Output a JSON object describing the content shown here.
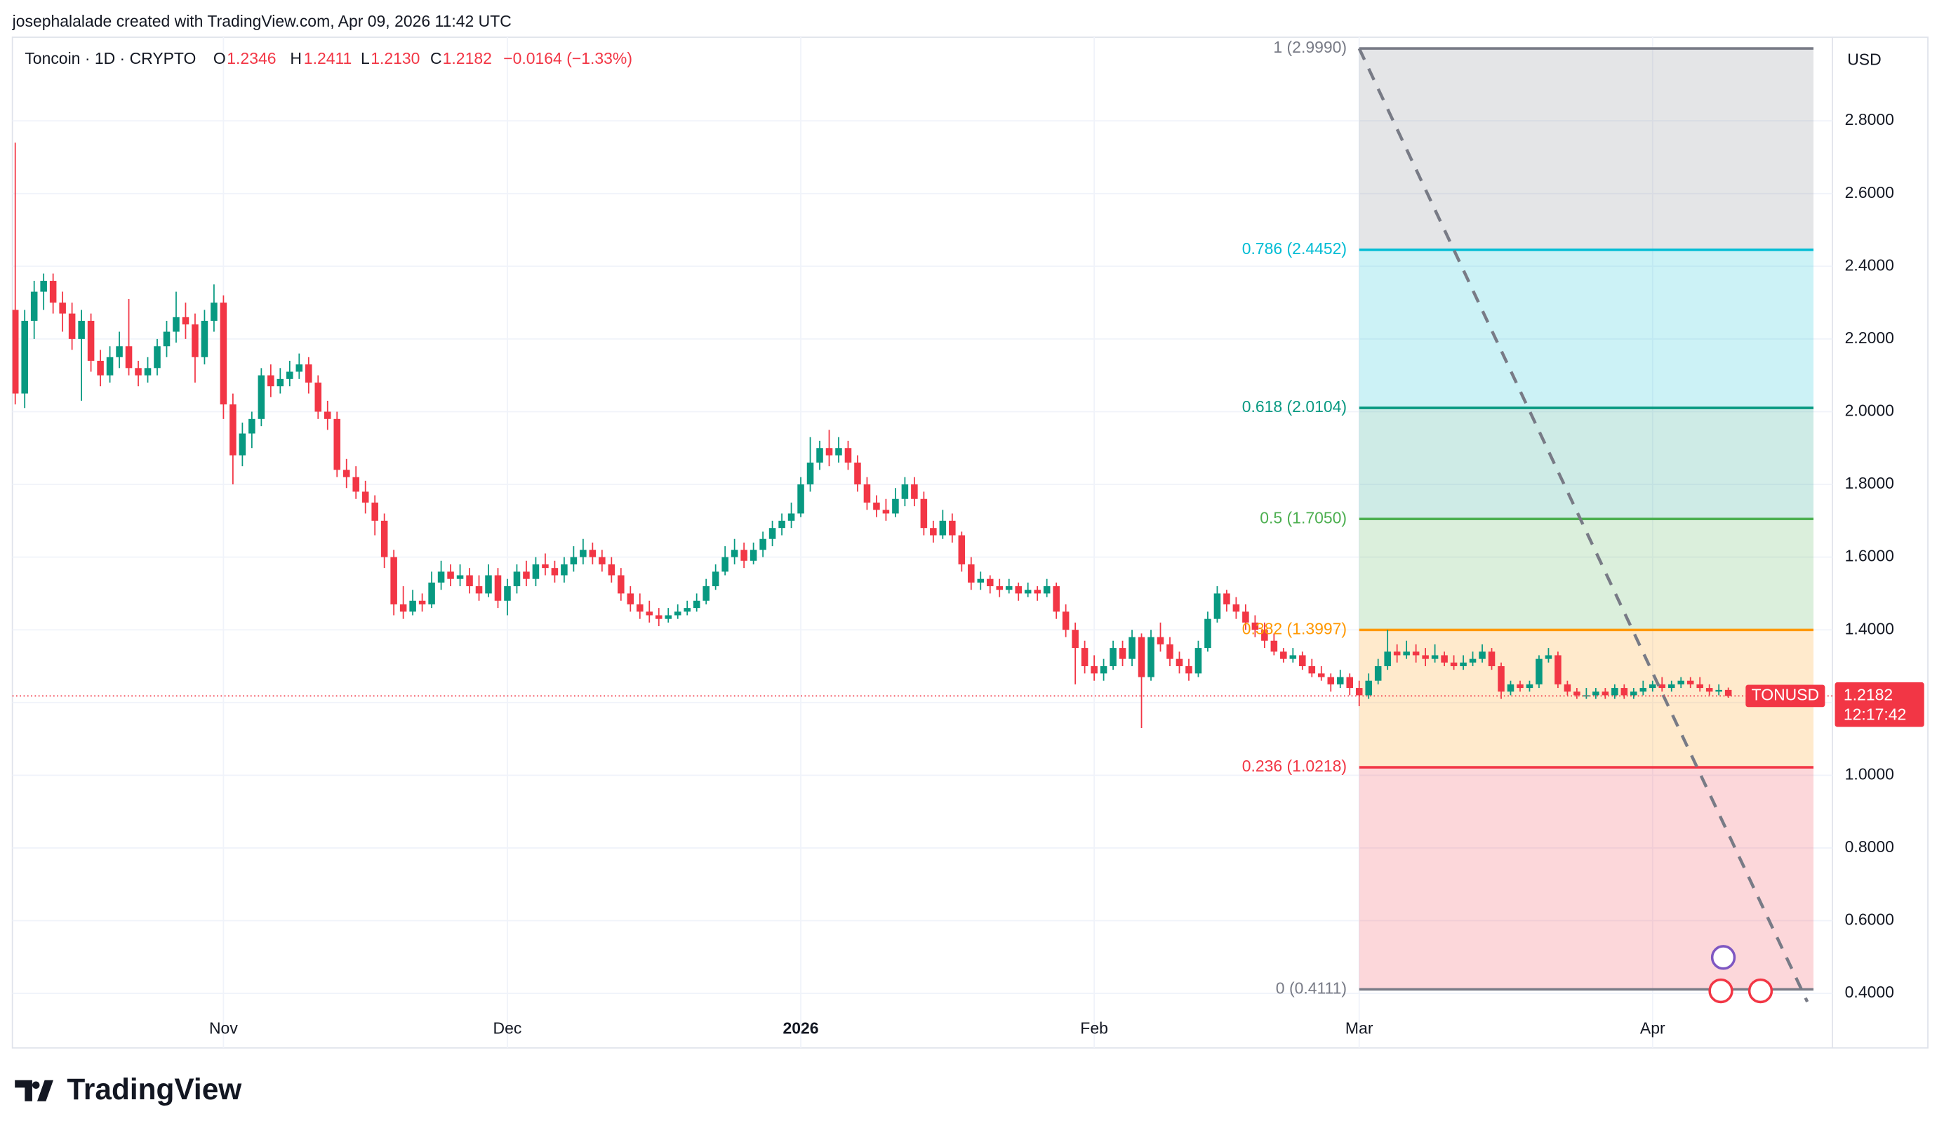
{
  "header": {
    "created": "josephalalade created with TradingView.com, Apr 09, 2026 11:42 UTC",
    "symbol": "Toncoin · 1D · CRYPTO",
    "ohlc_labels": [
      {
        "key": "O",
        "value": "1.2346"
      },
      {
        "key": "H",
        "value": "1.2411"
      },
      {
        "key": "L",
        "value": "1.2130"
      },
      {
        "key": "C",
        "value": "1.2182"
      }
    ],
    "change": "−0.0164 (−1.33%)",
    "currency": "USD",
    "ticker": "TONUSD",
    "price": "1.2182",
    "countdown": "12:17:42",
    "brand": "TradingView"
  },
  "chart_data": {
    "type": "candlestick",
    "up_color": "#089981",
    "down_color": "#f23645",
    "grid": true,
    "xlim": [
      -0.3,
      192
    ],
    "xticks": [
      {
        "value": 22,
        "label": "Nov"
      },
      {
        "value": 52,
        "label": "Dec"
      },
      {
        "value": 83,
        "label": "2026"
      },
      {
        "value": 114,
        "label": "Feb"
      },
      {
        "value": 142,
        "label": "Mar"
      },
      {
        "value": 173,
        "label": "Apr"
      }
    ],
    "ylim": [
      0.25,
      3.03
    ],
    "yticks": [
      {
        "value": 0.4,
        "label": "0.4000"
      },
      {
        "value": 0.6,
        "label": "0.6000"
      },
      {
        "value": 0.8,
        "label": "0.8000"
      },
      {
        "value": 1,
        "label": "1.0000"
      },
      {
        "value": 1.2,
        "label": "1.2000"
      },
      {
        "value": 1.4,
        "label": "1.4000"
      },
      {
        "value": 1.6,
        "label": "1.6000"
      },
      {
        "value": 1.8,
        "label": "1.8000"
      },
      {
        "value": 2,
        "label": "2.0000"
      },
      {
        "value": 2.2,
        "label": "2.2000"
      },
      {
        "value": 2.4,
        "label": "2.4000"
      },
      {
        "value": 2.6,
        "label": "2.6000"
      },
      {
        "value": 2.8,
        "label": "2.8000"
      }
    ],
    "fib": {
      "x_range": [
        142,
        190
      ],
      "levels": [
        {
          "label": "1 (2.9990)",
          "price": 2.999,
          "color": "#787b86"
        },
        {
          "label": "0.786 (2.4452)",
          "price": 2.4452,
          "color": "#00bcd4"
        },
        {
          "label": "0.618 (2.0104)",
          "price": 2.0104,
          "color": "#089981"
        },
        {
          "label": "0.5 (1.7050)",
          "price": 1.705,
          "color": "#4caf50"
        },
        {
          "label": "0.382 (1.3997)",
          "price": 1.3997,
          "color": "#ff9800"
        },
        {
          "label": "0.236 (1.0218)",
          "price": 1.0218,
          "color": "#f23645"
        },
        {
          "label": "0 (0.4111)",
          "price": 0.4111,
          "color": "#787b86"
        }
      ]
    },
    "ohlc": [
      [
        2.28,
        2.74,
        2.02,
        2.05
      ],
      [
        2.05,
        2.28,
        2.01,
        2.25
      ],
      [
        2.25,
        2.36,
        2.2,
        2.33
      ],
      [
        2.33,
        2.38,
        2.28,
        2.36
      ],
      [
        2.36,
        2.38,
        2.27,
        2.3
      ],
      [
        2.3,
        2.33,
        2.22,
        2.27
      ],
      [
        2.27,
        2.3,
        2.17,
        2.2
      ],
      [
        2.2,
        2.28,
        2.03,
        2.25
      ],
      [
        2.25,
        2.27,
        2.11,
        2.14
      ],
      [
        2.14,
        2.17,
        2.07,
        2.1
      ],
      [
        2.1,
        2.18,
        2.08,
        2.15
      ],
      [
        2.15,
        2.22,
        2.12,
        2.18
      ],
      [
        2.18,
        2.31,
        2.1,
        2.12
      ],
      [
        2.12,
        2.14,
        2.07,
        2.1
      ],
      [
        2.1,
        2.15,
        2.08,
        2.12
      ],
      [
        2.12,
        2.2,
        2.1,
        2.18
      ],
      [
        2.18,
        2.25,
        2.15,
        2.22
      ],
      [
        2.22,
        2.33,
        2.19,
        2.26
      ],
      [
        2.26,
        2.3,
        2.2,
        2.24
      ],
      [
        2.24,
        2.27,
        2.08,
        2.15
      ],
      [
        2.15,
        2.28,
        2.13,
        2.25
      ],
      [
        2.25,
        2.35,
        2.22,
        2.3
      ],
      [
        2.3,
        2.32,
        1.98,
        2.02
      ],
      [
        2.02,
        2.05,
        1.8,
        1.88
      ],
      [
        1.88,
        1.97,
        1.85,
        1.94
      ],
      [
        1.94,
        2,
        1.9,
        1.98
      ],
      [
        1.98,
        2.12,
        1.96,
        2.1
      ],
      [
        2.1,
        2.13,
        2.04,
        2.07
      ],
      [
        2.07,
        2.12,
        2.05,
        2.09
      ],
      [
        2.09,
        2.14,
        2.07,
        2.11
      ],
      [
        2.11,
        2.16,
        2.09,
        2.13
      ],
      [
        2.13,
        2.15,
        2.05,
        2.08
      ],
      [
        2.08,
        2.1,
        1.98,
        2
      ],
      [
        2,
        2.03,
        1.95,
        1.98
      ],
      [
        1.98,
        2,
        1.82,
        1.84
      ],
      [
        1.84,
        1.87,
        1.79,
        1.82
      ],
      [
        1.82,
        1.85,
        1.76,
        1.78
      ],
      [
        1.78,
        1.81,
        1.72,
        1.75
      ],
      [
        1.75,
        1.77,
        1.66,
        1.7
      ],
      [
        1.7,
        1.72,
        1.57,
        1.6
      ],
      [
        1.6,
        1.62,
        1.44,
        1.47
      ],
      [
        1.47,
        1.52,
        1.43,
        1.45
      ],
      [
        1.45,
        1.51,
        1.44,
        1.48
      ],
      [
        1.48,
        1.5,
        1.45,
        1.47
      ],
      [
        1.47,
        1.56,
        1.46,
        1.53
      ],
      [
        1.53,
        1.59,
        1.51,
        1.56
      ],
      [
        1.56,
        1.58,
        1.52,
        1.54
      ],
      [
        1.54,
        1.58,
        1.52,
        1.55
      ],
      [
        1.55,
        1.57,
        1.5,
        1.52
      ],
      [
        1.52,
        1.55,
        1.48,
        1.5
      ],
      [
        1.5,
        1.58,
        1.49,
        1.55
      ],
      [
        1.55,
        1.57,
        1.46,
        1.48
      ],
      [
        1.48,
        1.54,
        1.44,
        1.52
      ],
      [
        1.52,
        1.58,
        1.5,
        1.56
      ],
      [
        1.56,
        1.59,
        1.52,
        1.54
      ],
      [
        1.54,
        1.6,
        1.52,
        1.58
      ],
      [
        1.58,
        1.61,
        1.55,
        1.57
      ],
      [
        1.57,
        1.59,
        1.53,
        1.55
      ],
      [
        1.55,
        1.6,
        1.53,
        1.58
      ],
      [
        1.58,
        1.63,
        1.56,
        1.6
      ],
      [
        1.6,
        1.65,
        1.58,
        1.62
      ],
      [
        1.62,
        1.64,
        1.58,
        1.6
      ],
      [
        1.6,
        1.62,
        1.56,
        1.58
      ],
      [
        1.58,
        1.6,
        1.53,
        1.55
      ],
      [
        1.55,
        1.57,
        1.48,
        1.5
      ],
      [
        1.5,
        1.52,
        1.45,
        1.47
      ],
      [
        1.47,
        1.5,
        1.43,
        1.45
      ],
      [
        1.45,
        1.48,
        1.42,
        1.44
      ],
      [
        1.44,
        1.46,
        1.41,
        1.43
      ],
      [
        1.43,
        1.46,
        1.42,
        1.44
      ],
      [
        1.44,
        1.47,
        1.43,
        1.45
      ],
      [
        1.45,
        1.48,
        1.44,
        1.46
      ],
      [
        1.46,
        1.5,
        1.45,
        1.48
      ],
      [
        1.48,
        1.54,
        1.47,
        1.52
      ],
      [
        1.52,
        1.58,
        1.51,
        1.56
      ],
      [
        1.56,
        1.63,
        1.55,
        1.6
      ],
      [
        1.6,
        1.65,
        1.58,
        1.62
      ],
      [
        1.62,
        1.64,
        1.57,
        1.59
      ],
      [
        1.59,
        1.64,
        1.58,
        1.62
      ],
      [
        1.62,
        1.67,
        1.6,
        1.65
      ],
      [
        1.65,
        1.7,
        1.63,
        1.68
      ],
      [
        1.68,
        1.72,
        1.66,
        1.7
      ],
      [
        1.7,
        1.75,
        1.68,
        1.72
      ],
      [
        1.72,
        1.82,
        1.71,
        1.8
      ],
      [
        1.8,
        1.93,
        1.78,
        1.86
      ],
      [
        1.86,
        1.92,
        1.84,
        1.9
      ],
      [
        1.9,
        1.95,
        1.85,
        1.88
      ],
      [
        1.88,
        1.93,
        1.86,
        1.9
      ],
      [
        1.9,
        1.92,
        1.84,
        1.86
      ],
      [
        1.86,
        1.88,
        1.78,
        1.8
      ],
      [
        1.8,
        1.82,
        1.73,
        1.75
      ],
      [
        1.75,
        1.77,
        1.71,
        1.73
      ],
      [
        1.73,
        1.76,
        1.7,
        1.72
      ],
      [
        1.72,
        1.79,
        1.71,
        1.76
      ],
      [
        1.76,
        1.82,
        1.74,
        1.8
      ],
      [
        1.8,
        1.82,
        1.74,
        1.76
      ],
      [
        1.76,
        1.78,
        1.66,
        1.68
      ],
      [
        1.68,
        1.7,
        1.64,
        1.66
      ],
      [
        1.66,
        1.73,
        1.65,
        1.7
      ],
      [
        1.7,
        1.72,
        1.64,
        1.66
      ],
      [
        1.66,
        1.67,
        1.56,
        1.58
      ],
      [
        1.58,
        1.6,
        1.51,
        1.53
      ],
      [
        1.53,
        1.56,
        1.51,
        1.54
      ],
      [
        1.54,
        1.55,
        1.5,
        1.52
      ],
      [
        1.52,
        1.54,
        1.49,
        1.51
      ],
      [
        1.51,
        1.54,
        1.5,
        1.52
      ],
      [
        1.52,
        1.53,
        1.48,
        1.5
      ],
      [
        1.5,
        1.53,
        1.49,
        1.51
      ],
      [
        1.51,
        1.52,
        1.48,
        1.5
      ],
      [
        1.5,
        1.54,
        1.49,
        1.52
      ],
      [
        1.52,
        1.53,
        1.43,
        1.45
      ],
      [
        1.45,
        1.47,
        1.38,
        1.4
      ],
      [
        1.4,
        1.42,
        1.25,
        1.35
      ],
      [
        1.35,
        1.37,
        1.28,
        1.3
      ],
      [
        1.3,
        1.33,
        1.26,
        1.28
      ],
      [
        1.28,
        1.32,
        1.26,
        1.3
      ],
      [
        1.3,
        1.37,
        1.29,
        1.35
      ],
      [
        1.35,
        1.37,
        1.3,
        1.32
      ],
      [
        1.32,
        1.4,
        1.3,
        1.38
      ],
      [
        1.38,
        1.39,
        1.13,
        1.27
      ],
      [
        1.27,
        1.4,
        1.26,
        1.38
      ],
      [
        1.38,
        1.42,
        1.34,
        1.36
      ],
      [
        1.36,
        1.38,
        1.3,
        1.32
      ],
      [
        1.32,
        1.34,
        1.28,
        1.3
      ],
      [
        1.3,
        1.32,
        1.26,
        1.28
      ],
      [
        1.28,
        1.37,
        1.27,
        1.35
      ],
      [
        1.35,
        1.45,
        1.34,
        1.43
      ],
      [
        1.43,
        1.52,
        1.42,
        1.5
      ],
      [
        1.5,
        1.51,
        1.45,
        1.47
      ],
      [
        1.47,
        1.49,
        1.43,
        1.45
      ],
      [
        1.45,
        1.47,
        1.4,
        1.42
      ],
      [
        1.42,
        1.44,
        1.38,
        1.4
      ],
      [
        1.4,
        1.42,
        1.35,
        1.37
      ],
      [
        1.37,
        1.39,
        1.33,
        1.34
      ],
      [
        1.34,
        1.35,
        1.31,
        1.32
      ],
      [
        1.32,
        1.35,
        1.31,
        1.33
      ],
      [
        1.33,
        1.34,
        1.29,
        1.3
      ],
      [
        1.3,
        1.32,
        1.27,
        1.28
      ],
      [
        1.28,
        1.3,
        1.26,
        1.27
      ],
      [
        1.27,
        1.28,
        1.23,
        1.25
      ],
      [
        1.25,
        1.29,
        1.24,
        1.27
      ],
      [
        1.27,
        1.28,
        1.22,
        1.24
      ],
      [
        1.24,
        1.26,
        1.19,
        1.22
      ],
      [
        1.22,
        1.28,
        1.21,
        1.26
      ],
      [
        1.26,
        1.32,
        1.25,
        1.3
      ],
      [
        1.3,
        1.4,
        1.29,
        1.34
      ],
      [
        1.34,
        1.36,
        1.31,
        1.33
      ],
      [
        1.33,
        1.37,
        1.32,
        1.34
      ],
      [
        1.34,
        1.36,
        1.31,
        1.33
      ],
      [
        1.33,
        1.35,
        1.3,
        1.32
      ],
      [
        1.32,
        1.36,
        1.31,
        1.33
      ],
      [
        1.33,
        1.34,
        1.3,
        1.31
      ],
      [
        1.31,
        1.33,
        1.29,
        1.3
      ],
      [
        1.3,
        1.33,
        1.29,
        1.31
      ],
      [
        1.31,
        1.34,
        1.3,
        1.32
      ],
      [
        1.32,
        1.36,
        1.31,
        1.34
      ],
      [
        1.34,
        1.35,
        1.29,
        1.3
      ],
      [
        1.3,
        1.31,
        1.21,
        1.23
      ],
      [
        1.23,
        1.26,
        1.22,
        1.25
      ],
      [
        1.25,
        1.26,
        1.23,
        1.24
      ],
      [
        1.24,
        1.26,
        1.23,
        1.25
      ],
      [
        1.25,
        1.33,
        1.24,
        1.32
      ],
      [
        1.32,
        1.35,
        1.31,
        1.33
      ],
      [
        1.33,
        1.34,
        1.24,
        1.25
      ],
      [
        1.25,
        1.26,
        1.22,
        1.23
      ],
      [
        1.23,
        1.24,
        1.21,
        1.22
      ],
      [
        1.22,
        1.24,
        1.21,
        1.22
      ],
      [
        1.22,
        1.24,
        1.21,
        1.23
      ],
      [
        1.23,
        1.24,
        1.21,
        1.22
      ],
      [
        1.22,
        1.25,
        1.21,
        1.24
      ],
      [
        1.24,
        1.25,
        1.21,
        1.22
      ],
      [
        1.22,
        1.24,
        1.21,
        1.23
      ],
      [
        1.23,
        1.26,
        1.22,
        1.24
      ],
      [
        1.24,
        1.26,
        1.23,
        1.25
      ],
      [
        1.25,
        1.27,
        1.23,
        1.24
      ],
      [
        1.24,
        1.26,
        1.23,
        1.25
      ],
      [
        1.25,
        1.27,
        1.24,
        1.26
      ],
      [
        1.26,
        1.27,
        1.24,
        1.25
      ],
      [
        1.25,
        1.27,
        1.23,
        1.24
      ],
      [
        1.24,
        1.25,
        1.22,
        1.23
      ],
      [
        1.23,
        1.25,
        1.22,
        1.2346
      ],
      [
        1.2346,
        1.2411,
        1.213,
        1.2182
      ]
    ]
  }
}
